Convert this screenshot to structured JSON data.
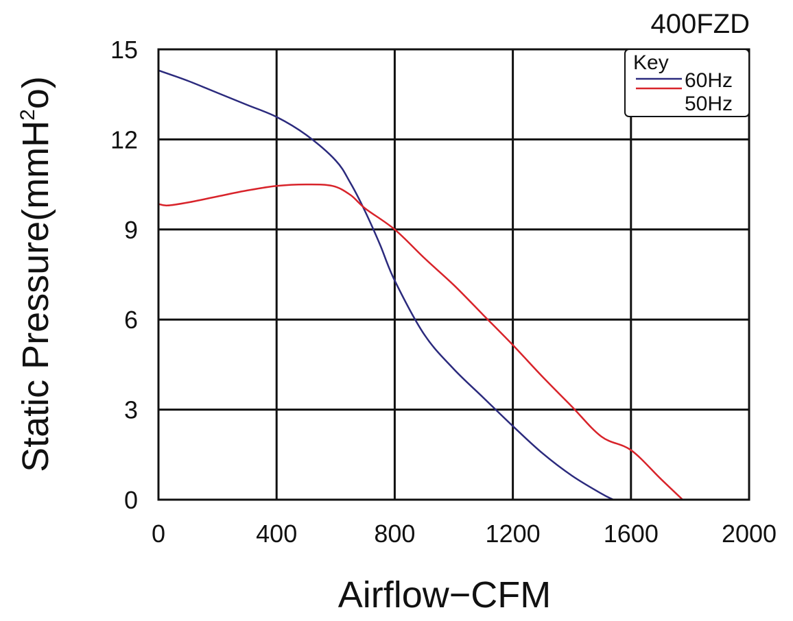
{
  "chart_data": {
    "type": "line",
    "title": "400FZD",
    "xlabel": "Airflow−CFM",
    "ylabel_main": "Static Pressure(mmH",
    "ylabel_sup": "2",
    "ylabel_tail": "o)",
    "xlim": [
      0,
      2000
    ],
    "ylim": [
      0,
      15
    ],
    "x_ticks": [
      "0",
      "400",
      "800",
      "1200",
      "1600",
      "2000"
    ],
    "y_ticks": [
      "0",
      "3",
      "6",
      "9",
      "12",
      "15"
    ],
    "grid": true,
    "legend": {
      "title": "Key",
      "placement": "top-right"
    },
    "series": [
      {
        "name": "60Hz",
        "color": "#2b2a7d",
        "x": [
          0,
          100,
          200,
          300,
          400,
          500,
          600,
          650,
          700,
          750,
          800,
          900,
          1000,
          1100,
          1200,
          1300,
          1400,
          1500,
          1540
        ],
        "y": [
          14.3,
          13.95,
          13.55,
          13.15,
          12.75,
          12.15,
          11.3,
          10.55,
          9.6,
          8.5,
          7.3,
          5.5,
          4.35,
          3.4,
          2.45,
          1.55,
          0.8,
          0.2,
          0.0
        ]
      },
      {
        "name": "50Hz",
        "color": "#d8232a",
        "x": [
          0,
          30,
          100,
          200,
          300,
          400,
          500,
          590,
          650,
          700,
          800,
          900,
          1000,
          1100,
          1200,
          1300,
          1400,
          1500,
          1600,
          1700,
          1775
        ],
        "y": [
          9.85,
          9.8,
          9.9,
          10.1,
          10.3,
          10.45,
          10.5,
          10.45,
          10.15,
          9.7,
          9.0,
          8.05,
          7.15,
          6.15,
          5.15,
          4.1,
          3.1,
          2.1,
          1.65,
          0.7,
          0.0
        ]
      }
    ]
  }
}
